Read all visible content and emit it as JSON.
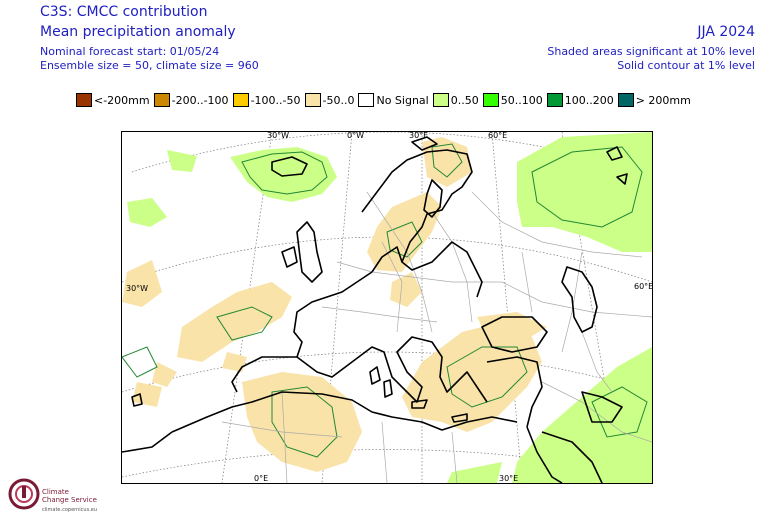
{
  "header": {
    "title": "C3S: CMCC contribution",
    "subtitle": "Mean precipitation anomaly",
    "nominal_start": "Nominal forecast start: 01/05/24",
    "ensemble": "Ensemble size = 50, climate size = 960",
    "season": "JJA 2024",
    "shaded_note": "Shaded areas significant at 10% level",
    "solid_note": "Solid contour at 1% level"
  },
  "legend": {
    "items": [
      {
        "label": "<-200mm",
        "color": "#993300"
      },
      {
        "label": "-200..-100",
        "color": "#cc8800"
      },
      {
        "label": "-100..-50",
        "color": "#ffcc00"
      },
      {
        "label": "-50..0",
        "color": "#f9e3a9"
      },
      {
        "label": "No Signal",
        "color": "#ffffff"
      },
      {
        "label": "0..50",
        "color": "#ccff88"
      },
      {
        "label": "50..100",
        "color": "#33ff00"
      },
      {
        "label": "100..200",
        "color": "#009933"
      },
      {
        "label": "> 200mm",
        "color": "#006666"
      }
    ]
  },
  "map": {
    "lon_labels_top": [
      "30°W",
      "0°W",
      "30°E",
      "60°E"
    ],
    "lon_labels_bottom": [
      "0°E",
      "30°E"
    ],
    "lat_label_left": "30°W",
    "lat_label_right": "60°E",
    "colors": {
      "dry": "#f9e3a9",
      "wet": "#ccff88",
      "contour": "#228833",
      "coast": "#000000",
      "border": "#aaaaaa",
      "grid": "#777777"
    }
  },
  "logo": {
    "line1": "Climate",
    "line2": "Change Service",
    "url": "climate.copernicus.eu"
  }
}
